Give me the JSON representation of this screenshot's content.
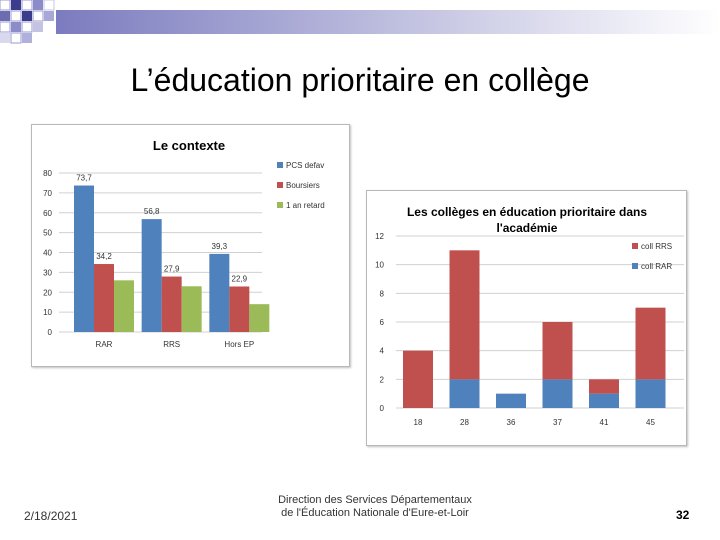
{
  "slide": {
    "title": "L’éducation prioritaire en collège",
    "date": "2/18/2021",
    "footer_line1": "Direction des Services Départementaux",
    "footer_line2": "de l'Éducation Nationale d'Eure-et-Loir",
    "page_number": "32"
  },
  "chart_data": [
    {
      "type": "bar",
      "title": "Le contexte",
      "categories": [
        "RAR",
        "RRS",
        "Hors EP"
      ],
      "series": [
        {
          "name": "PCS defav",
          "values": [
            73.7,
            56.8,
            39.3
          ],
          "labels": [
            "73,7",
            "56,8",
            "39,3"
          ],
          "color": "#4f81bd"
        },
        {
          "name": "Boursiers",
          "values": [
            34.2,
            27.9,
            22.9
          ],
          "labels": [
            "34,2",
            "27,9",
            "22,9"
          ],
          "color": "#c0504d"
        },
        {
          "name": "1 an retard",
          "values": [
            26,
            23,
            14
          ],
          "color": "#9bbb59"
        }
      ],
      "ylim": [
        0,
        80
      ],
      "yticks": [
        "0",
        "10",
        "20",
        "30",
        "40",
        "50",
        "60",
        "70",
        "80"
      ],
      "grid": true,
      "legend": "right"
    },
    {
      "type": "bar",
      "stacked": true,
      "title": "Les collèges en éducation prioritaire dans l'académie",
      "categories": [
        "18",
        "28",
        "36",
        "37",
        "41",
        "45"
      ],
      "series": [
        {
          "name": "coll RAR",
          "values": [
            0,
            2,
            1,
            2,
            1,
            2
          ],
          "color": "#4f81bd"
        },
        {
          "name": "coll RRS",
          "values": [
            4,
            9,
            0,
            4,
            1,
            5
          ],
          "color": "#c0504d"
        }
      ],
      "ylim": [
        0,
        12
      ],
      "yticks": [
        "0",
        "2",
        "4",
        "6",
        "8",
        "10",
        "12"
      ],
      "grid": true,
      "legend": "right"
    }
  ]
}
